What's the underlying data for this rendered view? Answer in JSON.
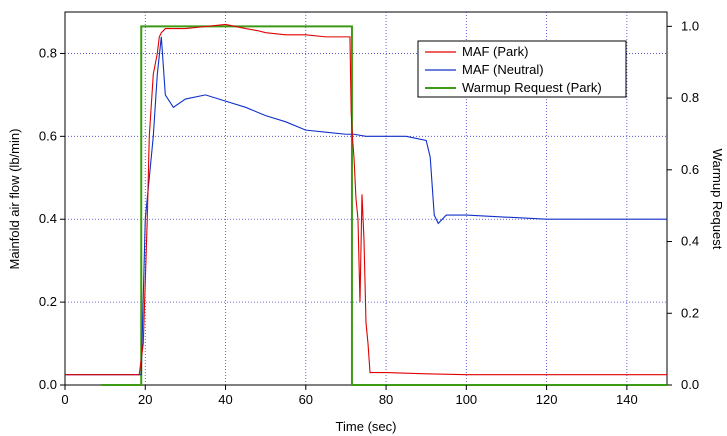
{
  "chart_data": {
    "type": "line",
    "title": "",
    "xlabel": "Time (sec)",
    "ylabel": "Mainfold air flow  (lb/min)",
    "y2label": "Warmup Request",
    "xlim": [
      0,
      150
    ],
    "ylim": [
      0,
      0.9
    ],
    "y2lim": [
      0,
      1.04
    ],
    "x_ticks": [
      0,
      20,
      40,
      60,
      80,
      100,
      120,
      140
    ],
    "y_ticks": [
      0.0,
      0.2,
      0.4,
      0.6,
      0.8
    ],
    "y2_ticks": [
      0.0,
      0.2,
      0.4,
      0.6,
      0.8,
      1.0
    ],
    "x_tick_labels": [
      "0",
      "20",
      "40",
      "60",
      "80",
      "100",
      "120",
      "140"
    ],
    "y_tick_labels": [
      "0.0",
      "0.2",
      "0.4",
      "0.6",
      "0.8"
    ],
    "y2_tick_labels": [
      "0.0",
      "0.2",
      "0.4",
      "0.6",
      "0.8",
      "1.0"
    ],
    "grid": true,
    "legend_position": "top-right",
    "colors": {
      "MAF (Park)": "#e00000",
      "MAF (Neutral)": "#1030c8",
      "Warmup Request (Park)": "#3c9a14",
      "grid": "#4040c8"
    },
    "series": [
      {
        "name": "MAF (Park)",
        "axis": "left",
        "x": [
          0,
          18.5,
          19.5,
          20.5,
          21,
          22,
          23,
          23.5,
          24,
          25,
          30,
          35,
          40,
          45,
          48,
          50,
          55,
          60,
          65,
          68,
          70,
          71,
          71.3,
          71.6,
          72,
          72.5,
          73,
          73.5,
          74,
          74.5,
          75,
          75.5,
          76,
          77,
          80,
          90,
          100,
          110,
          120,
          130,
          140,
          150
        ],
        "y": [
          0.025,
          0.025,
          0.1,
          0.4,
          0.6,
          0.75,
          0.8,
          0.84,
          0.85,
          0.86,
          0.86,
          0.865,
          0.87,
          0.86,
          0.855,
          0.85,
          0.845,
          0.845,
          0.84,
          0.84,
          0.84,
          0.84,
          0.66,
          0.6,
          0.55,
          0.45,
          0.4,
          0.2,
          0.46,
          0.35,
          0.15,
          0.1,
          0.03,
          0.03,
          0.03,
          0.027,
          0.025,
          0.025,
          0.025,
          0.025,
          0.025,
          0.025
        ]
      },
      {
        "name": "MAF (Neutral)",
        "axis": "left",
        "x": [
          0,
          19,
          20,
          21,
          22,
          23,
          24,
          25,
          27,
          30,
          35,
          40,
          45,
          50,
          55,
          60,
          65,
          70,
          72,
          75,
          80,
          85,
          90,
          91,
          92,
          93,
          95,
          100,
          110,
          120,
          130,
          140,
          150
        ],
        "y": [
          0.025,
          0.025,
          0.4,
          0.5,
          0.6,
          0.75,
          0.84,
          0.7,
          0.67,
          0.69,
          0.7,
          0.685,
          0.67,
          0.65,
          0.635,
          0.615,
          0.61,
          0.605,
          0.605,
          0.6,
          0.6,
          0.6,
          0.59,
          0.55,
          0.41,
          0.39,
          0.41,
          0.41,
          0.405,
          0.4,
          0.4,
          0.4,
          0.4
        ]
      },
      {
        "name": "Warmup Request (Park)",
        "axis": "right",
        "x": [
          9,
          19,
          19,
          71.5,
          71.5,
          150
        ],
        "y": [
          0,
          0,
          1,
          1,
          0,
          0
        ]
      }
    ]
  }
}
